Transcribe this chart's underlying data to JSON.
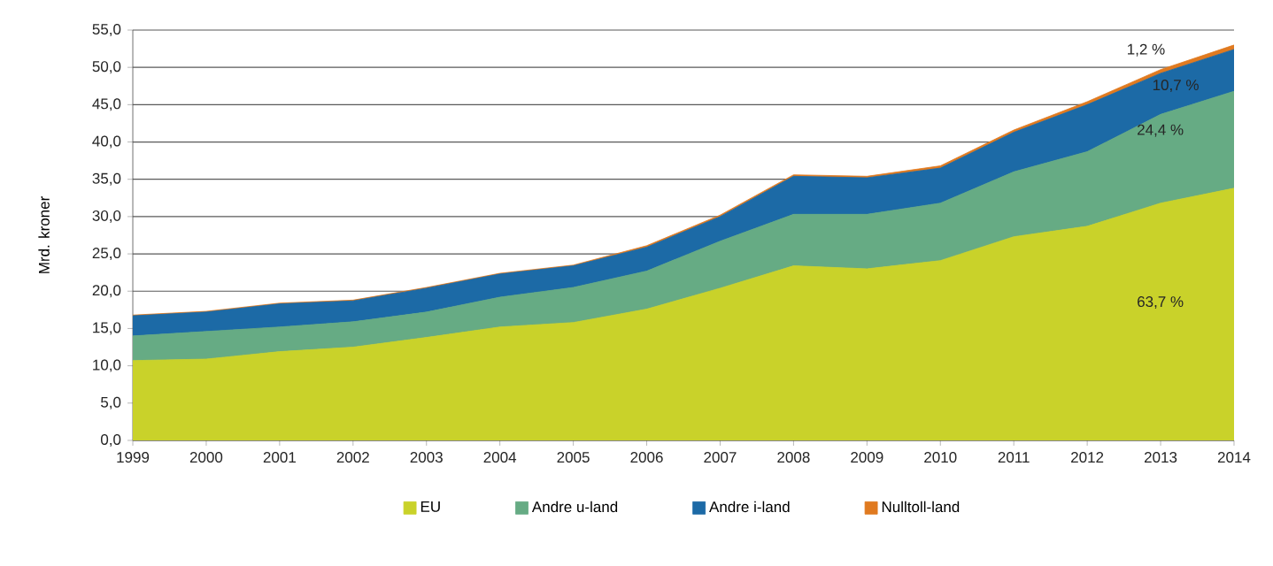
{
  "chart_data": {
    "type": "area",
    "stacked": true,
    "ylabel": "Mrd. kroner",
    "x": [
      1999,
      2000,
      2001,
      2002,
      2003,
      2004,
      2005,
      2006,
      2007,
      2008,
      2009,
      2010,
      2011,
      2012,
      2013,
      2014
    ],
    "series": [
      {
        "name": "EU",
        "color": "#c9d22a",
        "values": [
          10.7,
          10.9,
          11.9,
          12.5,
          13.8,
          15.2,
          15.8,
          17.6,
          20.4,
          23.4,
          23.0,
          24.1,
          27.3,
          28.7,
          31.8,
          33.8
        ]
      },
      {
        "name": "Andre u-land",
        "color": "#66ab84",
        "values": [
          3.3,
          3.7,
          3.3,
          3.4,
          3.4,
          4.0,
          4.7,
          5.1,
          6.3,
          6.9,
          7.3,
          7.7,
          8.7,
          10.0,
          11.9,
          13.0
        ]
      },
      {
        "name": "Andre i-land",
        "color": "#1c6aa6",
        "values": [
          2.7,
          2.6,
          3.1,
          2.8,
          3.2,
          3.1,
          2.9,
          3.2,
          3.3,
          5.1,
          4.9,
          4.7,
          5.3,
          6.3,
          5.5,
          5.6
        ]
      },
      {
        "name": "Nulltoll-land",
        "color": "#e07a20",
        "values": [
          0.1,
          0.1,
          0.1,
          0.1,
          0.1,
          0.1,
          0.1,
          0.2,
          0.2,
          0.2,
          0.2,
          0.3,
          0.3,
          0.4,
          0.5,
          0.6
        ]
      }
    ],
    "xlim": [
      1999,
      2014
    ],
    "xticks": [
      1999,
      2000,
      2001,
      2002,
      2003,
      2004,
      2005,
      2006,
      2007,
      2008,
      2009,
      2010,
      2011,
      2012,
      2013,
      2014
    ],
    "ylim": [
      0,
      55
    ],
    "yticks": [
      {
        "value": 0,
        "label": "0,0"
      },
      {
        "value": 5,
        "label": "5,0"
      },
      {
        "value": 10,
        "label": "10,0"
      },
      {
        "value": 15,
        "label": "15,0"
      },
      {
        "value": 20,
        "label": "20,0"
      },
      {
        "value": 25,
        "label": "25,0"
      },
      {
        "value": 30,
        "label": "30,0"
      },
      {
        "value": 35,
        "label": "35,0"
      },
      {
        "value": 40,
        "label": "40,0"
      },
      {
        "value": 45,
        "label": "45,0"
      },
      {
        "value": 50,
        "label": "50,0"
      },
      {
        "value": 55,
        "label": "55,0"
      }
    ],
    "annotations": [
      "63,7 %",
      "24,4 %",
      "10,7 %",
      "1,2 %"
    ],
    "grid": "y",
    "legend": "bottom"
  }
}
